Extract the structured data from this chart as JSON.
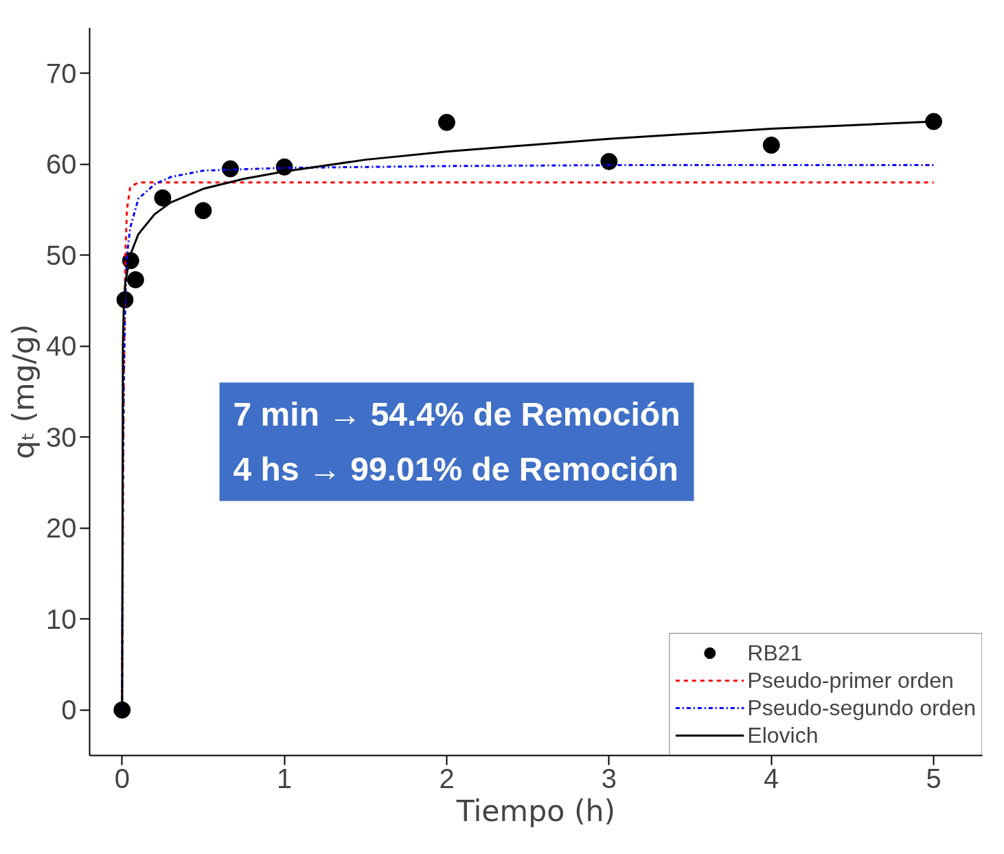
{
  "chart_data": {
    "type": "scatter",
    "xlabel": "Tiempo (h)",
    "ylabel": "qₜ (mg/g)",
    "xlim": [
      -0.2,
      5.3
    ],
    "ylim": [
      -5,
      75
    ],
    "xticks": [
      0,
      1,
      2,
      3,
      4,
      5
    ],
    "yticks": [
      0,
      10,
      20,
      30,
      40,
      50,
      60,
      70
    ],
    "grid": false,
    "legend": "bottom right",
    "annotations": [
      "7 min → 54.4% de Remoción",
      "4 hs → 99.01% de Remoción"
    ],
    "series": [
      {
        "name": "RB21",
        "marker": "circle",
        "color": "#000000",
        "x": [
          0,
          0.018,
          0.053,
          0.083,
          0.25,
          0.5,
          0.667,
          1,
          2,
          3,
          4,
          5
        ],
        "values": [
          0,
          45.1,
          49.4,
          47.3,
          56.3,
          54.9,
          59.5,
          59.7,
          64.6,
          60.3,
          62.1,
          64.7
        ]
      },
      {
        "name": "Pseudo-primer orden",
        "type": "line",
        "line_style": "dashed",
        "color": "#ff0000",
        "x": [
          0,
          0.005,
          0.01,
          0.02,
          0.03,
          0.05,
          0.1,
          0.5,
          1,
          2,
          3,
          4,
          5
        ],
        "values": [
          0,
          20,
          35,
          50,
          55,
          57.5,
          58,
          58,
          58,
          58,
          58,
          58,
          58
        ]
      },
      {
        "name": "Pseudo-segundo orden",
        "type": "line",
        "line_style": "dashdot",
        "color": "#0000ff",
        "x": [
          0,
          0.005,
          0.01,
          0.02,
          0.03,
          0.05,
          0.1,
          0.2,
          0.3,
          0.5,
          1,
          2,
          3,
          4,
          5
        ],
        "values": [
          0,
          25,
          36,
          45,
          50,
          53,
          56.2,
          57.8,
          58.6,
          59.3,
          59.6,
          59.8,
          59.9,
          59.9,
          59.9
        ]
      },
      {
        "name": "Elovich",
        "type": "line",
        "line_style": "solid",
        "color": "#000000",
        "x": [
          0,
          0.005,
          0.01,
          0.02,
          0.05,
          0.1,
          0.2,
          0.3,
          0.5,
          0.75,
          1,
          1.5,
          2,
          3,
          4,
          5
        ],
        "values": [
          0,
          40,
          44,
          47,
          50,
          52.3,
          54.5,
          55.8,
          57.3,
          58.4,
          59.2,
          60.5,
          61.4,
          62.8,
          63.9,
          64.7
        ]
      }
    ]
  }
}
